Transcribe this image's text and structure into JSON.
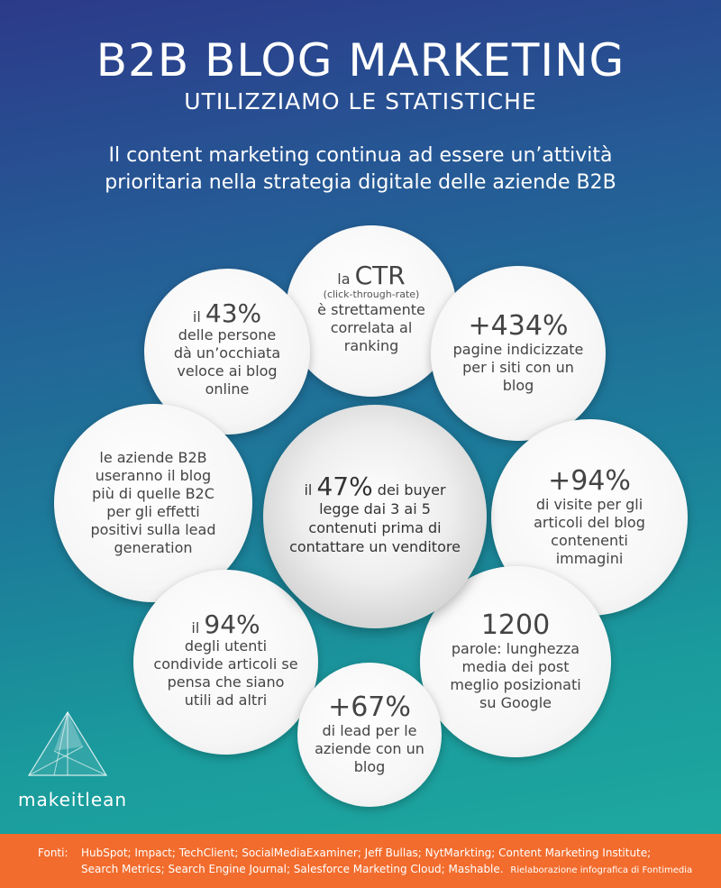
{
  "header": {
    "title": "B2B BLOG MARKETING",
    "subtitle": "UTILIZZIAMO LE STATISTICHE",
    "intro_line1": "Il content marketing continua ad essere un’attività",
    "intro_line2": "prioritaria nella strategia digitale delle aziende B2B"
  },
  "bubbles": {
    "ctr": {
      "prefix": "la",
      "big": "CTR",
      "small": "(click-through-rate)",
      "line1": "è strettamente",
      "line2": "correlata al",
      "line3": "ranking"
    },
    "b43": {
      "prefix": "il",
      "big": "43%",
      "line1": "delle persone",
      "line2": "dà un’occhiata",
      "line3": "veloce ai blog",
      "line4": "online"
    },
    "b434": {
      "big": "+434%",
      "line1": "pagine indicizzate",
      "line2": "per i siti con un",
      "line3": "blog"
    },
    "b2b": {
      "line1": "le aziende B2B",
      "line2": "useranno il blog",
      "line3": "più di quelle B2C",
      "line4": "per gli effetti",
      "line5": "positivi sulla lead",
      "line6": "generation"
    },
    "b94v": {
      "big": "+94%",
      "line1": "di visite per gli",
      "line2": "articoli del blog",
      "line3": "contenenti",
      "line4": "immagini"
    },
    "b94u": {
      "prefix": "il",
      "big": "94%",
      "line1": "degli utenti",
      "line2": "condivide articoli se",
      "line3": "pensa che siano",
      "line4": "utili ad altri"
    },
    "b1200": {
      "big": "1200",
      "line1": "parole: lunghezza",
      "line2": "media dei post",
      "line3": "meglio posizionati",
      "line4": "su Google"
    },
    "b67": {
      "big": "+67%",
      "line1": "di lead per le",
      "line2": "aziende con un",
      "line3": "blog"
    },
    "center": {
      "prefix": "il",
      "big": "47%",
      "suffix": "dei buyer",
      "line2": "legge dai 3 ai 5",
      "line3": "contenuti prima di",
      "line4": "contattare un venditore"
    }
  },
  "brand": {
    "name": "makeitlean",
    "icon": "triangle-logo-icon"
  },
  "footer": {
    "label": "Fonti:",
    "line1": "HubSpot; Impact; TechClient; SocialMediaExaminer; Jeff Bullas; NytMarkting; Content Marketing Institute;",
    "line2": "Search Metrics; Search Engine Journal; Salesforce Marketing Cloud; Mashable.",
    "credit": "Rielaborazione infografica di Fontimedia"
  },
  "colors": {
    "footer_bg": "#f26c2d",
    "gradient_top": "#2c3a8a",
    "gradient_bottom": "#1ea8a0"
  }
}
